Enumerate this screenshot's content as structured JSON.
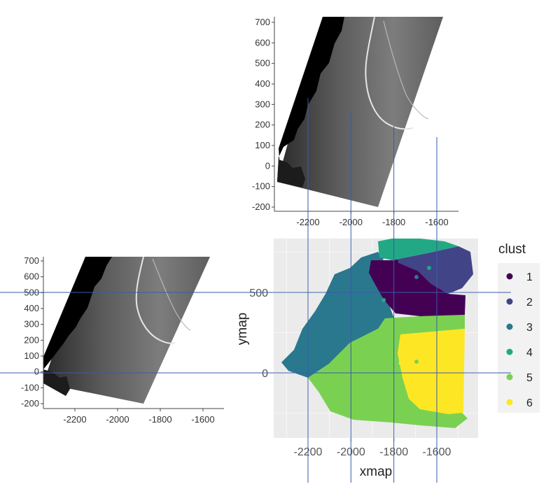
{
  "chart_data": [
    {
      "type": "scatter",
      "name": "satellite image (top)",
      "x_ticks": [
        -2200,
        -2000,
        -1800,
        -1600
      ],
      "y_ticks": [
        700,
        600,
        500,
        400,
        300,
        200,
        100,
        0,
        -100,
        -200
      ],
      "x_tick_labels": [
        "-2200",
        "-2000",
        "-1800",
        "-1600"
      ],
      "y_tick_labels": [
        "700",
        "600",
        "500",
        "400",
        "300",
        "200",
        "100",
        "0",
        "-100",
        "-200"
      ],
      "xlim": [
        -2350,
        -1480
      ],
      "ylim": [
        -230,
        730
      ]
    },
    {
      "type": "scatter",
      "name": "satellite image (left)",
      "x_ticks": [
        -2200,
        -2000,
        -1800,
        -1600
      ],
      "y_ticks": [
        700,
        600,
        500,
        400,
        300,
        200,
        100,
        0,
        -100,
        -200
      ],
      "x_tick_labels": [
        "-2200",
        "-2000",
        "-1800",
        "-1600"
      ],
      "y_tick_labels": [
        "700",
        "600",
        "500",
        "400",
        "300",
        "200",
        "100",
        "0",
        "-100",
        "-200"
      ],
      "xlim": [
        -2350,
        -1480
      ],
      "ylim": [
        -230,
        730
      ]
    },
    {
      "type": "scatter",
      "name": "cluster map",
      "xlabel": "xmap",
      "ylabel": "ymap",
      "x_tick_labels": [
        "-2200",
        "-2000",
        "-1800",
        "-1600"
      ],
      "y_tick_labels": [
        "500",
        "0"
      ],
      "legend_title": "clust",
      "legend_position": "right",
      "series": [
        {
          "name": "1",
          "color": "#440154"
        },
        {
          "name": "2",
          "color": "#414487"
        },
        {
          "name": "3",
          "color": "#2a788e"
        },
        {
          "name": "4",
          "color": "#22a884"
        },
        {
          "name": "5",
          "color": "#7ad151"
        },
        {
          "name": "6",
          "color": "#fde725"
        }
      ],
      "grid": true,
      "background": "#ebebeb"
    }
  ],
  "guide_lines": {
    "color": "#3a5aa8",
    "vertical_x": [
      -2200,
      -2000,
      -1800,
      -1600
    ],
    "horizontal_y": [
      500,
      0
    ]
  }
}
